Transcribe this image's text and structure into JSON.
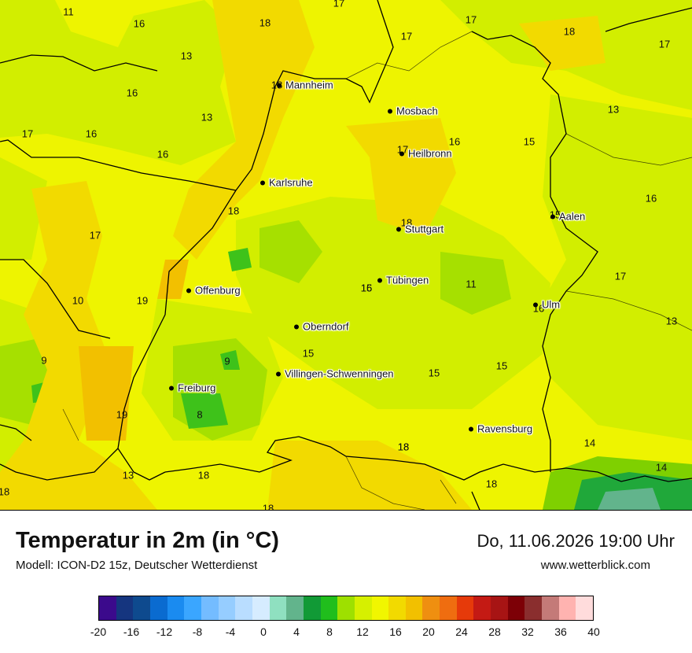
{
  "header": {
    "title": "Temperatur in 2m (in °C)",
    "model": "Modell: ICON-D2 15z, Deutscher Wetterdienst",
    "datetime": "Do, 11.06.2026 19:00 Uhr",
    "site": "www.wetterblick.com"
  },
  "cities": [
    {
      "name": "Mannheim"
    },
    {
      "name": "Mosbach"
    },
    {
      "name": "Heilbronn"
    },
    {
      "name": "Karlsruhe"
    },
    {
      "name": "Aalen"
    },
    {
      "name": "Stuttgart"
    },
    {
      "name": "Tübingen"
    },
    {
      "name": "Offenburg"
    },
    {
      "name": "Ulm"
    },
    {
      "name": "Oberndorf"
    },
    {
      "name": "Villingen-Schwenningen"
    },
    {
      "name": "Freiburg"
    },
    {
      "name": "Ravensburg"
    }
  ],
  "temperatures": [
    "11",
    "17",
    "16",
    "18",
    "17",
    "17",
    "18",
    "13",
    "17",
    "16",
    "18",
    "16",
    "13",
    "13",
    "17",
    "16",
    "16",
    "15",
    "17",
    "16",
    "18",
    "15",
    "18",
    "15",
    "17",
    "17",
    "11",
    "19",
    "10",
    "16",
    "16",
    "13",
    "9",
    "9",
    "15",
    "15",
    "15",
    "8",
    "19",
    "14",
    "18",
    "18",
    "18",
    "13",
    "18",
    "14",
    "18",
    "18"
  ],
  "legend": {
    "colors": [
      "#3b0a8c",
      "#15357f",
      "#0e4a8e",
      "#0a6bd0",
      "#1a8bf0",
      "#3aa6ff",
      "#74bcff",
      "#96cdff",
      "#b9ddff",
      "#d6ecff",
      "#8fe0c0",
      "#62b48c",
      "#119a36",
      "#20be1c",
      "#9ee000",
      "#d6f000",
      "#f1f600",
      "#f2da00",
      "#f2c000",
      "#ef8f10",
      "#ef6d10",
      "#e63a0a",
      "#c41a14",
      "#a71414",
      "#7d0006",
      "#8a2e2e",
      "#c47a78",
      "#ffb3b0",
      "#ffdcdc"
    ],
    "ticks": [
      "-20",
      "-16",
      "-12",
      "-8",
      "-4",
      "0",
      "4",
      "8",
      "12",
      "16",
      "20",
      "24",
      "28",
      "32",
      "36",
      "40"
    ]
  }
}
